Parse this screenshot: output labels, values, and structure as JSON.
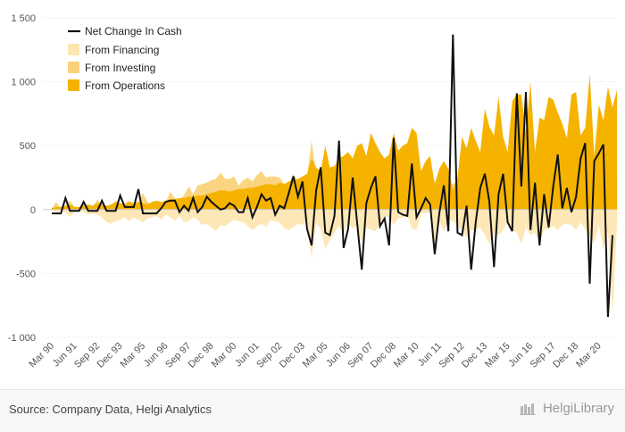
{
  "footer": {
    "source": "Source: Company Data, Helgi Analytics",
    "brand": "HelgiLibrary"
  },
  "chart_data": {
    "type": "area",
    "title": "",
    "xlabel": "",
    "ylabel": "",
    "ylim": [
      -1000,
      1500
    ],
    "yticks": [
      -1000,
      -500,
      0,
      500,
      1000,
      1500
    ],
    "ytick_labels": [
      "-1 000",
      "-500",
      "0",
      "500",
      "1 000",
      "1 500"
    ],
    "grid": true,
    "legend_position": "top-left",
    "colors": {
      "net": "#111111",
      "financing": "#fde6b2",
      "investing": "#fbd27a",
      "operations": "#f5b300"
    },
    "x_tick_labels": [
      "Mar 90",
      "Jun 91",
      "Sep 92",
      "Dec 93",
      "Mar 95",
      "Jun 96",
      "Sep 97",
      "Dec 98",
      "Mar 00",
      "Jun 01",
      "Sep 02",
      "Dec 03",
      "Mar 05",
      "Jun 06",
      "Sep 07",
      "Dec 08",
      "Mar 10",
      "Jun 11",
      "Sep 12",
      "Dec 13",
      "Mar 15",
      "Jun 16",
      "Sep 17",
      "Dec 18",
      "Mar 20"
    ],
    "x_tick_period_index": [
      0,
      5,
      10,
      15,
      20,
      25,
      30,
      35,
      40,
      45,
      50,
      55,
      60,
      65,
      70,
      75,
      80,
      85,
      90,
      95,
      100,
      105,
      110,
      115,
      120
    ],
    "series": [
      {
        "name": "Net Change In Cash",
        "kind": "line",
        "values": [
          -30,
          -30,
          -30,
          90,
          -10,
          -10,
          -10,
          60,
          -10,
          -10,
          -10,
          70,
          -10,
          -10,
          -10,
          110,
          20,
          20,
          20,
          160,
          -30,
          -30,
          -30,
          -30,
          10,
          60,
          70,
          70,
          -20,
          30,
          -10,
          90,
          -20,
          20,
          100,
          60,
          30,
          0,
          10,
          50,
          30,
          -20,
          -20,
          90,
          -60,
          20,
          120,
          70,
          90,
          -40,
          30,
          10,
          130,
          260,
          100,
          220,
          -150,
          -280,
          150,
          330,
          -180,
          -200,
          -50,
          540,
          -300,
          -150,
          250,
          -110,
          -470,
          50,
          170,
          260,
          -130,
          -70,
          -280,
          560,
          -20,
          -40,
          -50,
          360,
          -60,
          10,
          90,
          40,
          -350,
          -30,
          190,
          -170,
          1370,
          -180,
          -200,
          30,
          -470,
          -100,
          170,
          280,
          60,
          -450,
          120,
          280,
          -100,
          -170,
          910,
          180,
          920,
          -160,
          210,
          -280,
          120,
          -140,
          180,
          430,
          10,
          170,
          -20,
          100,
          400,
          520,
          -580,
          380,
          440,
          510,
          -840,
          -200
        ]
      },
      {
        "name": "From Financing",
        "kind": "area",
        "values": [
          -10,
          -20,
          -10,
          -20,
          -60,
          -10,
          -10,
          -20,
          -40,
          -30,
          -40,
          -60,
          -100,
          -110,
          -90,
          -80,
          -60,
          -90,
          -60,
          -80,
          -100,
          -70,
          -60,
          -50,
          -80,
          -40,
          -60,
          -90,
          -50,
          -100,
          -90,
          -60,
          -80,
          -120,
          -110,
          -140,
          -170,
          -120,
          -130,
          -100,
          -80,
          -90,
          -100,
          -130,
          -160,
          -130,
          -110,
          -140,
          -80,
          -90,
          -100,
          -150,
          -160,
          -140,
          -110,
          -120,
          -80,
          -380,
          -110,
          -150,
          -310,
          -240,
          -180,
          -130,
          -200,
          -100,
          -150,
          -120,
          -260,
          -140,
          -160,
          -170,
          -110,
          -50,
          -60,
          -120,
          -70,
          -60,
          -50,
          -150,
          -160,
          -30,
          -30,
          -20,
          -340,
          -90,
          -170,
          -80,
          -90,
          -130,
          -160,
          -220,
          -160,
          -160,
          -140,
          -200,
          -270,
          -180,
          -200,
          -160,
          -90,
          -160,
          -180,
          -270,
          -140,
          -200,
          -180,
          -260,
          -160,
          -150,
          -130,
          -160,
          -120,
          -110,
          -120,
          -160,
          -100,
          -150,
          -200,
          -260,
          -120,
          -310,
          -170,
          -820,
          -110
        ]
      },
      {
        "name": "From Investing",
        "kind": "area",
        "values": [
          10,
          60,
          10,
          30,
          70,
          20,
          10,
          40,
          30,
          20,
          80,
          30,
          20,
          30,
          70,
          40,
          50,
          70,
          40,
          60,
          130,
          60,
          40,
          20,
          50,
          60,
          140,
          90,
          80,
          110,
          180,
          120,
          190,
          200,
          210,
          230,
          240,
          290,
          240,
          240,
          260,
          190,
          230,
          250,
          220,
          270,
          300,
          250,
          260,
          260,
          250,
          200,
          210,
          280,
          220,
          240,
          260,
          540,
          280,
          300,
          280,
          330,
          280,
          300,
          310,
          350,
          300,
          310,
          370,
          290,
          320,
          330,
          280,
          250,
          300,
          380,
          260,
          270,
          260,
          360,
          290,
          200,
          240,
          250,
          220,
          190,
          260,
          200,
          200,
          230,
          320,
          250,
          350,
          290,
          250,
          350,
          320,
          280,
          370,
          260,
          220,
          360,
          310,
          310,
          330,
          340,
          260,
          370,
          310,
          310,
          320,
          300,
          290,
          290,
          300,
          350,
          290,
          350,
          360,
          440,
          300,
          380,
          300,
          800,
          300
        ]
      },
      {
        "name": "From Operations",
        "kind": "area",
        "values": [
          10,
          20,
          20,
          30,
          40,
          20,
          20,
          30,
          40,
          30,
          50,
          40,
          30,
          40,
          60,
          50,
          40,
          60,
          50,
          60,
          50,
          40,
          60,
          70,
          60,
          70,
          80,
          80,
          90,
          90,
          100,
          100,
          110,
          110,
          120,
          130,
          140,
          150,
          150,
          140,
          150,
          160,
          160,
          170,
          170,
          180,
          190,
          200,
          200,
          190,
          210,
          200,
          220,
          230,
          240,
          260,
          280,
          400,
          330,
          300,
          500,
          330,
          340,
          400,
          420,
          450,
          400,
          500,
          520,
          420,
          600,
          520,
          450,
          400,
          430,
          600,
          460,
          500,
          520,
          640,
          600,
          300,
          380,
          420,
          200,
          320,
          380,
          320,
          150,
          250,
          570,
          480,
          640,
          540,
          450,
          790,
          650,
          580,
          880,
          570,
          450,
          850,
          900,
          900,
          600,
          1000,
          450,
          720,
          700,
          880,
          860,
          760,
          670,
          560,
          900,
          920,
          580,
          640,
          1060,
          420,
          820,
          700,
          960,
          800,
          940
        ]
      }
    ]
  }
}
